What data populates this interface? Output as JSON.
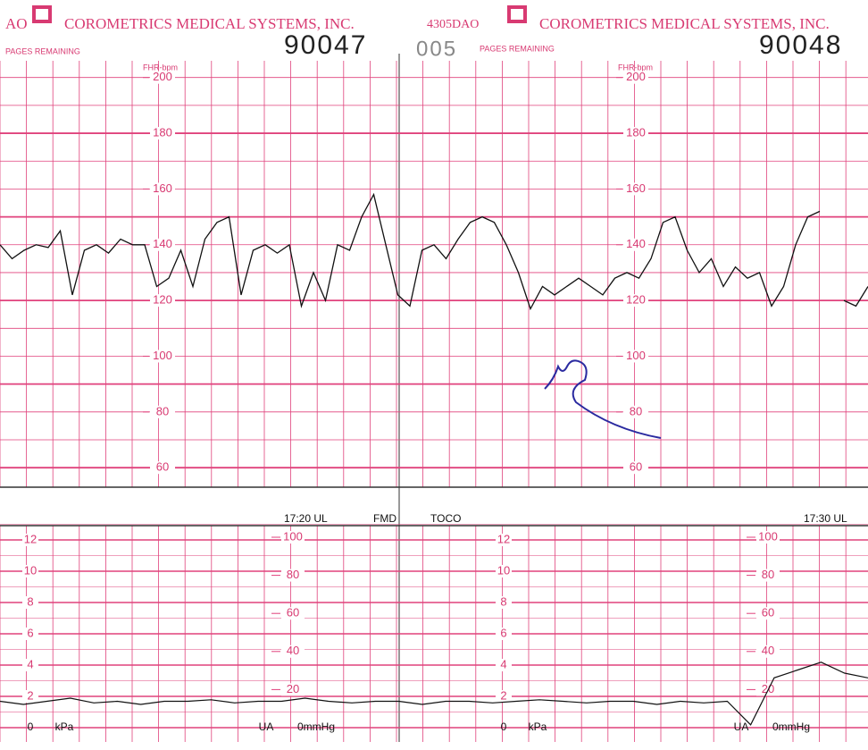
{
  "header": {
    "left_code": "AO",
    "company_left": "COROMETRICS MEDICAL SYSTEMS, INC.",
    "pages_left": "PAGES REMAINING",
    "page_left": "90047",
    "sheet": "005",
    "right_code": "4305DAO",
    "company_right": "COROMETRICS MEDICAL SYSTEMS, INC.",
    "pages_right": "PAGES REMAINING",
    "page_right": "90048"
  },
  "fhr": {
    "axis_label": "FHR-bpm",
    "ylim": [
      53,
      206
    ],
    "ticks": [
      200,
      180,
      160,
      140,
      120,
      100,
      80,
      60
    ],
    "trace": [
      140,
      135,
      138,
      140,
      139,
      145,
      122,
      138,
      140,
      137,
      142,
      140,
      140,
      125,
      128,
      138,
      125,
      142,
      148,
      150,
      122,
      138,
      140,
      137,
      140,
      118,
      130,
      120,
      140,
      138,
      150,
      158,
      140,
      122,
      118,
      138,
      140,
      135,
      142,
      148,
      150,
      148,
      140,
      130,
      117,
      125,
      122,
      125,
      128,
      125,
      122,
      128,
      130,
      128,
      135,
      148,
      150,
      138,
      130,
      135,
      125,
      132,
      128,
      130,
      118,
      125,
      140,
      150,
      152,
      null,
      120,
      118,
      125
    ]
  },
  "ua": {
    "kpa_label": "kPa",
    "kpa_ticks": [
      12,
      10,
      8,
      6,
      4,
      2
    ],
    "kpa_zero": "0",
    "mmhg_ticks": [
      100,
      80,
      60,
      40,
      20
    ],
    "ua_label": "UA",
    "mmhg_zero": "0mmHg",
    "time_left": "17:20 UL",
    "fmd": "FMD",
    "toco": "TOCO",
    "time_right": "17:30 UL",
    "trace": [
      1,
      0.8,
      1,
      1.2,
      0.9,
      1,
      0.8,
      1,
      1,
      1.1,
      0.9,
      1,
      1,
      1.2,
      1,
      0.9,
      1,
      1,
      0.8,
      1,
      1,
      0.9,
      1,
      1.1,
      1,
      0.9,
      1,
      1,
      0.8,
      1,
      0.9,
      1,
      -0.5,
      2.5,
      3,
      3.5,
      2.8,
      2.5
    ]
  }
}
